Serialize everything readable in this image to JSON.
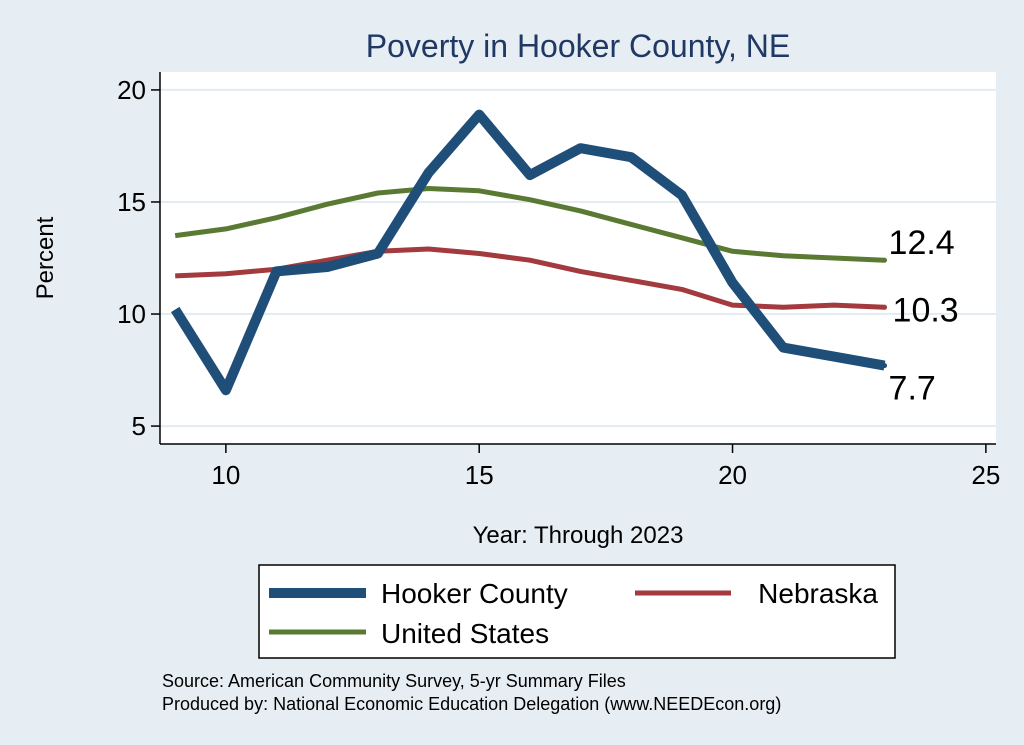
{
  "chart_data": {
    "type": "line",
    "title": "Poverty in Hooker County, NE",
    "xlabel": "Year: Through 2023",
    "ylabel": "Percent",
    "xlim": [
      8.7,
      25.2
    ],
    "ylim": [
      4.2,
      20.8
    ],
    "xticks": [
      10,
      15,
      20,
      25
    ],
    "yticks": [
      5,
      10,
      15,
      20
    ],
    "grid": true,
    "legend_position": "bottom",
    "x": [
      9,
      10,
      11,
      12,
      13,
      14,
      15,
      16,
      17,
      18,
      19,
      20,
      21,
      22,
      23
    ],
    "series": [
      {
        "name": "Hooker County",
        "color": "#1f4e79",
        "values": [
          10.2,
          6.6,
          11.9,
          12.1,
          12.7,
          16.3,
          18.9,
          16.2,
          17.4,
          17.0,
          15.3,
          11.4,
          8.5,
          8.1,
          7.7
        ],
        "end_label": "7.7"
      },
      {
        "name": "Nebraska",
        "color": "#a23a3e",
        "values": [
          11.7,
          11.8,
          12.0,
          12.4,
          12.8,
          12.9,
          12.7,
          12.4,
          11.9,
          11.5,
          11.1,
          10.4,
          10.3,
          10.4,
          10.3
        ],
        "end_label": "10.3"
      },
      {
        "name": "United States",
        "color": "#5a7a33",
        "values": [
          13.5,
          13.8,
          14.3,
          14.9,
          15.4,
          15.6,
          15.5,
          15.1,
          14.6,
          14.0,
          13.4,
          12.8,
          12.6,
          12.5,
          12.4
        ],
        "end_label": "12.4"
      }
    ],
    "notes": [
      "Source: American Community Survey, 5-yr Summary Files",
      "Produced by: National Economic Education Delegation (www.NEEDEcon.org)"
    ]
  }
}
